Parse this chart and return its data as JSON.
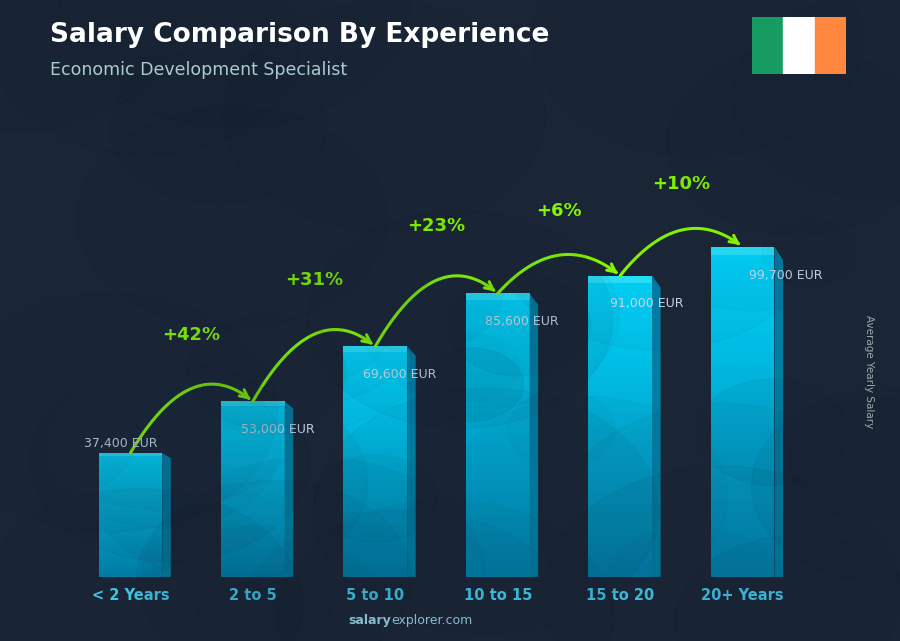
{
  "categories": [
    "< 2 Years",
    "2 to 5",
    "5 to 10",
    "10 to 15",
    "15 to 20",
    "20+ Years"
  ],
  "values": [
    37400,
    53000,
    69600,
    85600,
    91000,
    99700
  ],
  "salary_labels": [
    "37,400 EUR",
    "53,000 EUR",
    "69,600 EUR",
    "85,600 EUR",
    "91,000 EUR",
    "99,700 EUR"
  ],
  "pct_changes": [
    null,
    "+42%",
    "+31%",
    "+23%",
    "+6%",
    "+10%"
  ],
  "title": "Salary Comparison By Experience",
  "subtitle": "Economic Development Specialist",
  "ylabel": "Average Yearly Salary",
  "bg_color": "#1a2535",
  "bar_face_color": "#00b8d9",
  "bar_side_color": "#007fa3",
  "bar_top_color": "#00d8f8",
  "text_color": "#ffffff",
  "pct_color": "#88ff00",
  "salary_color": "#ccddee",
  "arrow_color": "#88ff00",
  "xtick_color": "#44ccee",
  "source_color": "#88bbcc",
  "ylim_max": 120000,
  "bar_width": 0.52,
  "flag_green": "#169B62",
  "flag_white": "#FFFFFF",
  "flag_orange": "#FF883E"
}
